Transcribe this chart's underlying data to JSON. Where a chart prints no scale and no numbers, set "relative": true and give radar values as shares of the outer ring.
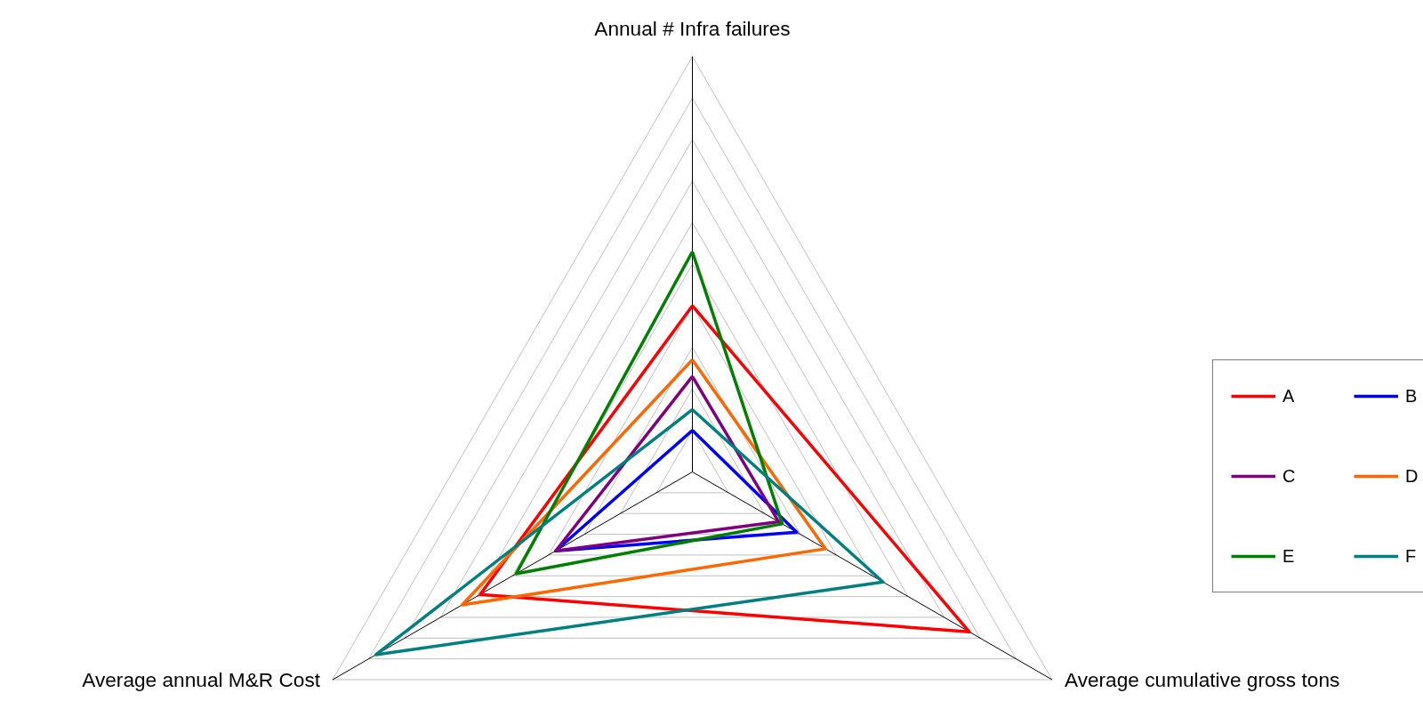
{
  "chart_data": {
    "type": "radar",
    "relative": true,
    "grid": true,
    "legend": "right",
    "categories": [
      "Annual # Infra failures",
      "Average cumulative gross tons",
      "Average annual M&R Cost"
    ],
    "series": [
      {
        "name": "A",
        "color": "#ff0000",
        "values": [
          0.4,
          0.77,
          0.59
        ]
      },
      {
        "name": "B",
        "color": "#0000ff",
        "values": [
          0.1,
          0.29,
          0.38
        ]
      },
      {
        "name": "C",
        "color": "#800080",
        "values": [
          0.23,
          0.24,
          0.38
        ]
      },
      {
        "name": "D",
        "color": "#ff6600",
        "values": [
          0.27,
          0.37,
          0.64
        ]
      },
      {
        "name": "E",
        "color": "#008000",
        "values": [
          0.53,
          0.25,
          0.49
        ]
      },
      {
        "name": "F",
        "color": "#008080",
        "values": [
          0.15,
          0.53,
          0.88
        ]
      }
    ]
  }
}
